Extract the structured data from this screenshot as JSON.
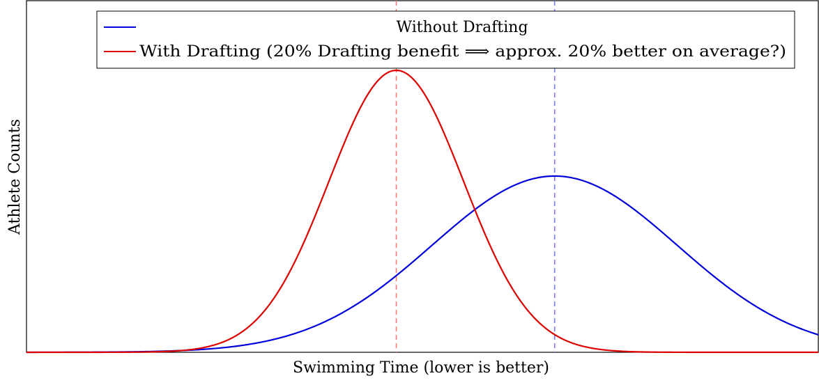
{
  "chart_data": {
    "type": "line",
    "title": "",
    "xlabel": "Swimming Time (lower is better)",
    "ylabel": "Athlete Counts",
    "xlim": [
      0,
      1
    ],
    "ylim": [
      0,
      1
    ],
    "x_tick_labels": [],
    "y_tick_labels": [],
    "grid": false,
    "legend_position": "top",
    "series": [
      {
        "name": "Without Drafting",
        "color": "#0000dd",
        "distribution": "normal",
        "mean": 0.667,
        "std": 0.155,
        "peak": 0.625,
        "reference_line": {
          "x": 0.667,
          "style": "dashed",
          "color": "#7777ff"
        }
      },
      {
        "name": "With Drafting (20% Drafting benefit ⟹ approx. 20% better on average?)",
        "color": "#dd0000",
        "distribution": "normal",
        "mean": 0.467,
        "std": 0.085,
        "peak": 1.0,
        "reference_line": {
          "x": 0.467,
          "style": "dashed",
          "color": "#ff7777"
        }
      }
    ]
  }
}
